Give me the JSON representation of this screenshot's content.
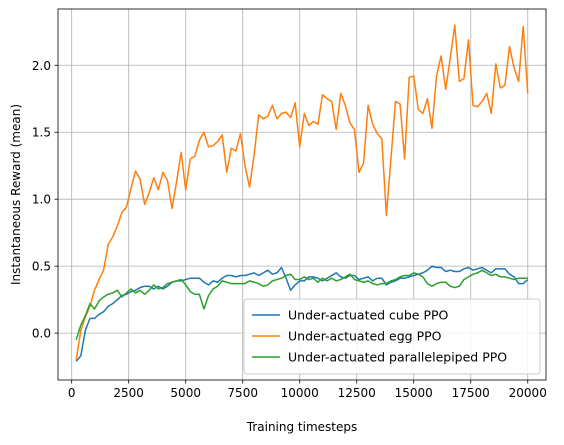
{
  "chart_data": {
    "type": "line",
    "xlabel": "Training timesteps",
    "ylabel": "Instantaneous Reward (mean)",
    "xlim": [
      -600,
      20800
    ],
    "ylim": [
      -0.35,
      2.42
    ],
    "xticks": [
      0,
      2500,
      5000,
      7500,
      10000,
      12500,
      15000,
      17500,
      20000
    ],
    "yticks": [
      0.0,
      0.5,
      1.0,
      1.5,
      2.0
    ],
    "xtick_labels": [
      "0",
      "2500",
      "5000",
      "7500",
      "10000",
      "12500",
      "15000",
      "17500",
      "20000"
    ],
    "ytick_labels": [
      "0.0",
      "0.5",
      "1.0",
      "1.5",
      "2.0"
    ],
    "grid": true,
    "legend_position": "lower-right",
    "series": [
      {
        "name": "Under-actuated cube PPO",
        "color": "#1f77b4",
        "x": [
          200,
          400,
          600,
          800,
          1000,
          1200,
          1400,
          1600,
          1800,
          2000,
          2200,
          2400,
          2600,
          2800,
          3000,
          3200,
          3400,
          3600,
          3800,
          4000,
          4200,
          4400,
          4600,
          4800,
          5000,
          5200,
          5400,
          5600,
          5800,
          6000,
          6200,
          6400,
          6600,
          6800,
          7000,
          7200,
          7400,
          7600,
          7800,
          8000,
          8200,
          8400,
          8600,
          8800,
          9000,
          9200,
          9400,
          9600,
          9800,
          10000,
          10200,
          10400,
          10600,
          10800,
          11000,
          11200,
          11400,
          11600,
          11800,
          12000,
          12200,
          12400,
          12600,
          12800,
          13000,
          13200,
          13400,
          13600,
          13800,
          14000,
          14200,
          14400,
          14600,
          14800,
          15000,
          15200,
          15400,
          15600,
          15800,
          16000,
          16200,
          16400,
          16600,
          16800,
          17000,
          17200,
          17400,
          17600,
          17800,
          18000,
          18200,
          18400,
          18600,
          18800,
          19000,
          19200,
          19400,
          19600,
          19800,
          20000
        ],
        "y": [
          -0.21,
          -0.17,
          0.02,
          0.11,
          0.11,
          0.14,
          0.16,
          0.2,
          0.22,
          0.25,
          0.28,
          0.29,
          0.31,
          0.32,
          0.34,
          0.35,
          0.35,
          0.33,
          0.35,
          0.33,
          0.35,
          0.38,
          0.39,
          0.39,
          0.4,
          0.41,
          0.41,
          0.41,
          0.38,
          0.36,
          0.39,
          0.38,
          0.41,
          0.43,
          0.43,
          0.42,
          0.43,
          0.43,
          0.44,
          0.45,
          0.43,
          0.45,
          0.47,
          0.44,
          0.45,
          0.49,
          0.41,
          0.32,
          0.36,
          0.39,
          0.39,
          0.42,
          0.42,
          0.41,
          0.39,
          0.41,
          0.43,
          0.45,
          0.42,
          0.41,
          0.43,
          0.43,
          0.4,
          0.41,
          0.42,
          0.39,
          0.41,
          0.41,
          0.36,
          0.38,
          0.39,
          0.41,
          0.41,
          0.42,
          0.43,
          0.44,
          0.45,
          0.47,
          0.5,
          0.49,
          0.49,
          0.46,
          0.47,
          0.46,
          0.46,
          0.48,
          0.49,
          0.47,
          0.48,
          0.49,
          0.47,
          0.45,
          0.48,
          0.48,
          0.48,
          0.44,
          0.42,
          0.37,
          0.37,
          0.4
        ]
      },
      {
        "name": "Under-actuated egg PPO",
        "color": "#ff7f0e",
        "x": [
          200,
          400,
          600,
          800,
          1000,
          1200,
          1400,
          1600,
          1800,
          2000,
          2200,
          2400,
          2600,
          2800,
          3000,
          3200,
          3400,
          3600,
          3800,
          4000,
          4200,
          4400,
          4600,
          4800,
          5000,
          5200,
          5400,
          5600,
          5800,
          6000,
          6200,
          6400,
          6600,
          6800,
          7000,
          7200,
          7400,
          7600,
          7800,
          8000,
          8200,
          8400,
          8600,
          8800,
          9000,
          9200,
          9400,
          9600,
          9800,
          10000,
          10200,
          10400,
          10600,
          10800,
          11000,
          11200,
          11400,
          11600,
          11800,
          12000,
          12200,
          12400,
          12600,
          12800,
          13000,
          13200,
          13400,
          13600,
          13800,
          14000,
          14200,
          14400,
          14600,
          14800,
          15000,
          15200,
          15400,
          15600,
          15800,
          16000,
          16200,
          16400,
          16600,
          16800,
          17000,
          17200,
          17400,
          17600,
          17800,
          18000,
          18200,
          18400,
          18600,
          18800,
          19000,
          19200,
          19400,
          19600,
          19800,
          20000
        ],
        "y": [
          -0.2,
          0.02,
          0.12,
          0.2,
          0.32,
          0.4,
          0.47,
          0.66,
          0.72,
          0.8,
          0.9,
          0.94,
          1.08,
          1.21,
          1.15,
          0.96,
          1.05,
          1.16,
          1.07,
          1.2,
          1.14,
          0.93,
          1.13,
          1.35,
          1.07,
          1.3,
          1.32,
          1.44,
          1.5,
          1.39,
          1.4,
          1.43,
          1.48,
          1.2,
          1.38,
          1.36,
          1.49,
          1.25,
          1.09,
          1.33,
          1.63,
          1.6,
          1.62,
          1.7,
          1.6,
          1.64,
          1.65,
          1.61,
          1.72,
          1.39,
          1.64,
          1.55,
          1.58,
          1.56,
          1.78,
          1.75,
          1.73,
          1.52,
          1.79,
          1.7,
          1.57,
          1.52,
          1.2,
          1.27,
          1.7,
          1.56,
          1.49,
          1.45,
          0.88,
          1.3,
          1.73,
          1.71,
          1.3,
          1.91,
          1.92,
          1.67,
          1.64,
          1.75,
          1.53,
          1.92,
          2.07,
          1.82,
          2.05,
          2.3,
          1.88,
          1.9,
          2.19,
          1.7,
          1.69,
          1.73,
          1.79,
          1.64,
          2.01,
          1.83,
          1.85,
          2.14,
          1.98,
          1.88,
          2.29,
          1.79
        ]
      },
      {
        "name": "Under-actuated parallelepiped PPO",
        "color": "#2ca02c",
        "x": [
          200,
          400,
          600,
          800,
          1000,
          1200,
          1400,
          1600,
          1800,
          2000,
          2200,
          2400,
          2600,
          2800,
          3000,
          3200,
          3400,
          3600,
          3800,
          4000,
          4200,
          4400,
          4600,
          4800,
          5000,
          5200,
          5400,
          5600,
          5800,
          6000,
          6200,
          6400,
          6600,
          6800,
          7000,
          7200,
          7400,
          7600,
          7800,
          8000,
          8200,
          8400,
          8600,
          8800,
          9000,
          9200,
          9400,
          9600,
          9800,
          10000,
          10200,
          10400,
          10600,
          10800,
          11000,
          11200,
          11400,
          11600,
          11800,
          12000,
          12200,
          12400,
          12600,
          12800,
          13000,
          13200,
          13400,
          13600,
          13800,
          14000,
          14200,
          14400,
          14600,
          14800,
          15000,
          15200,
          15400,
          15600,
          15800,
          16000,
          16200,
          16400,
          16600,
          16800,
          17000,
          17200,
          17400,
          17600,
          17800,
          18000,
          18200,
          18400,
          18600,
          18800,
          19000,
          19200,
          19400,
          19600,
          19800,
          20000
        ],
        "y": [
          -0.05,
          0.06,
          0.13,
          0.22,
          0.18,
          0.24,
          0.27,
          0.29,
          0.3,
          0.32,
          0.27,
          0.3,
          0.33,
          0.3,
          0.32,
          0.29,
          0.32,
          0.36,
          0.33,
          0.34,
          0.37,
          0.38,
          0.39,
          0.4,
          0.36,
          0.31,
          0.29,
          0.29,
          0.18,
          0.28,
          0.33,
          0.35,
          0.39,
          0.38,
          0.37,
          0.37,
          0.37,
          0.37,
          0.39,
          0.38,
          0.37,
          0.35,
          0.36,
          0.39,
          0.4,
          0.41,
          0.43,
          0.44,
          0.4,
          0.4,
          0.42,
          0.4,
          0.41,
          0.38,
          0.41,
          0.39,
          0.41,
          0.39,
          0.4,
          0.42,
          0.44,
          0.4,
          0.39,
          0.38,
          0.39,
          0.37,
          0.36,
          0.37,
          0.37,
          0.39,
          0.4,
          0.42,
          0.43,
          0.43,
          0.45,
          0.44,
          0.42,
          0.37,
          0.35,
          0.37,
          0.38,
          0.38,
          0.35,
          0.34,
          0.35,
          0.4,
          0.42,
          0.44,
          0.45,
          0.47,
          0.45,
          0.43,
          0.44,
          0.42,
          0.42,
          0.41,
          0.4,
          0.41,
          0.41,
          0.41
        ]
      }
    ]
  }
}
